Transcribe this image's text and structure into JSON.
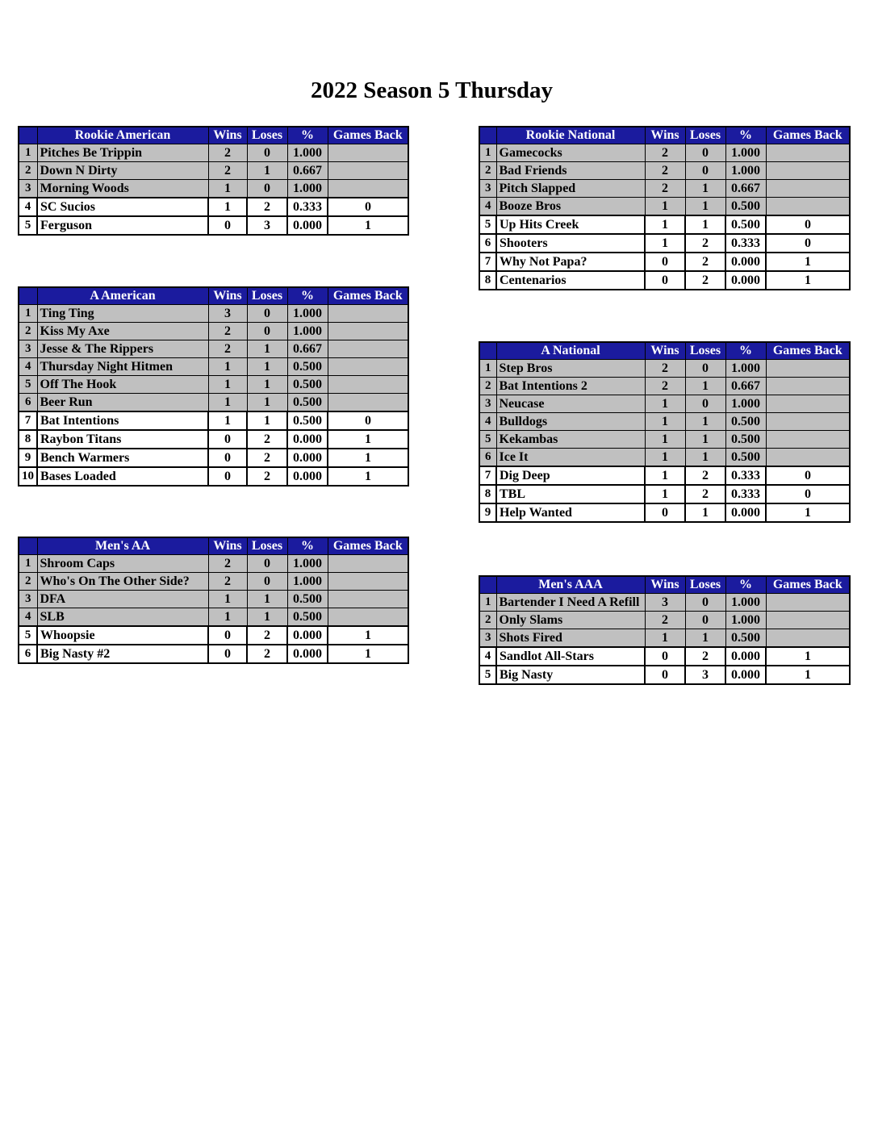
{
  "title": "2022 Season 5 Thursday",
  "column_headers": {
    "wins": "Wins",
    "loses": "Loses",
    "pct": "%",
    "games_back": "Games Back"
  },
  "colors": {
    "header_background": "#1b1b9e",
    "header_text": "#ffffff",
    "shaded_row": "#c0c0c0",
    "unshaded_row": "#ffffff",
    "border": "#000000"
  },
  "tables": [
    {
      "name": "Rookie American",
      "rows": [
        {
          "rank": "1",
          "team": "Pitches Be Trippin",
          "wins": "2",
          "loses": "0",
          "pct": "1.000",
          "games_back": "",
          "shaded": true
        },
        {
          "rank": "2",
          "team": "Down N Dirty",
          "wins": "2",
          "loses": "1",
          "pct": "0.667",
          "games_back": "",
          "shaded": true
        },
        {
          "rank": "3",
          "team": "Morning Woods",
          "wins": "1",
          "loses": "0",
          "pct": "1.000",
          "games_back": "",
          "shaded": true
        },
        {
          "rank": "4",
          "team": "SC Sucios",
          "wins": "1",
          "loses": "2",
          "pct": "0.333",
          "games_back": "0",
          "shaded": false
        },
        {
          "rank": "5",
          "team": "Ferguson",
          "wins": "0",
          "loses": "3",
          "pct": "0.000",
          "games_back": "1",
          "shaded": false
        }
      ]
    },
    {
      "name": "Rookie National",
      "rows": [
        {
          "rank": "1",
          "team": "Gamecocks",
          "wins": "2",
          "loses": "0",
          "pct": "1.000",
          "games_back": "",
          "shaded": true
        },
        {
          "rank": "2",
          "team": "Bad Friends",
          "wins": "2",
          "loses": "0",
          "pct": "1.000",
          "games_back": "",
          "shaded": true
        },
        {
          "rank": "3",
          "team": "Pitch Slapped",
          "wins": "2",
          "loses": "1",
          "pct": "0.667",
          "games_back": "",
          "shaded": true
        },
        {
          "rank": "4",
          "team": "Booze Bros",
          "wins": "1",
          "loses": "1",
          "pct": "0.500",
          "games_back": "",
          "shaded": true
        },
        {
          "rank": "5",
          "team": "Up Hits Creek",
          "wins": "1",
          "loses": "1",
          "pct": "0.500",
          "games_back": "0",
          "shaded": false
        },
        {
          "rank": "6",
          "team": "Shooters",
          "wins": "1",
          "loses": "2",
          "pct": "0.333",
          "games_back": "0",
          "shaded": false
        },
        {
          "rank": "7",
          "team": "Why Not Papa?",
          "wins": "0",
          "loses": "2",
          "pct": "0.000",
          "games_back": "1",
          "shaded": false
        },
        {
          "rank": "8",
          "team": "Centenarios",
          "wins": "0",
          "loses": "2",
          "pct": "0.000",
          "games_back": "1",
          "shaded": false
        }
      ]
    },
    {
      "name": "A American",
      "rows": [
        {
          "rank": "1",
          "team": "Ting Ting",
          "wins": "3",
          "loses": "0",
          "pct": "1.000",
          "games_back": "",
          "shaded": true
        },
        {
          "rank": "2",
          "team": "Kiss My Axe",
          "wins": "2",
          "loses": "0",
          "pct": "1.000",
          "games_back": "",
          "shaded": true
        },
        {
          "rank": "3",
          "team": "Jesse & The Rippers",
          "wins": "2",
          "loses": "1",
          "pct": "0.667",
          "games_back": "",
          "shaded": true
        },
        {
          "rank": "4",
          "team": "Thursday Night Hitmen",
          "wins": "1",
          "loses": "1",
          "pct": "0.500",
          "games_back": "",
          "shaded": true
        },
        {
          "rank": "5",
          "team": "Off The Hook",
          "wins": "1",
          "loses": "1",
          "pct": "0.500",
          "games_back": "",
          "shaded": true
        },
        {
          "rank": "6",
          "team": "Beer Run",
          "wins": "1",
          "loses": "1",
          "pct": "0.500",
          "games_back": "",
          "shaded": true
        },
        {
          "rank": "7",
          "team": "Bat Intentions",
          "wins": "1",
          "loses": "1",
          "pct": "0.500",
          "games_back": "0",
          "shaded": false
        },
        {
          "rank": "8",
          "team": "Raybon Titans",
          "wins": "0",
          "loses": "2",
          "pct": "0.000",
          "games_back": "1",
          "shaded": false
        },
        {
          "rank": "9",
          "team": "Bench Warmers",
          "wins": "0",
          "loses": "2",
          "pct": "0.000",
          "games_back": "1",
          "shaded": false
        },
        {
          "rank": "10",
          "team": "Bases Loaded",
          "wins": "0",
          "loses": "2",
          "pct": "0.000",
          "games_back": "1",
          "shaded": false
        }
      ]
    },
    {
      "name": "A National",
      "rows": [
        {
          "rank": "1",
          "team": "Step Bros",
          "wins": "2",
          "loses": "0",
          "pct": "1.000",
          "games_back": "",
          "shaded": true
        },
        {
          "rank": "2",
          "team": "Bat Intentions 2",
          "wins": "2",
          "loses": "1",
          "pct": "0.667",
          "games_back": "",
          "shaded": true
        },
        {
          "rank": "3",
          "team": "Neucase",
          "wins": "1",
          "loses": "0",
          "pct": "1.000",
          "games_back": "",
          "shaded": true
        },
        {
          "rank": "4",
          "team": "Bulldogs",
          "wins": "1",
          "loses": "1",
          "pct": "0.500",
          "games_back": "",
          "shaded": true
        },
        {
          "rank": "5",
          "team": "Kekambas",
          "wins": "1",
          "loses": "1",
          "pct": "0.500",
          "games_back": "",
          "shaded": true
        },
        {
          "rank": "6",
          "team": "Ice It",
          "wins": "1",
          "loses": "1",
          "pct": "0.500",
          "games_back": "",
          "shaded": true
        },
        {
          "rank": "7",
          "team": "Dig Deep",
          "wins": "1",
          "loses": "2",
          "pct": "0.333",
          "games_back": "0",
          "shaded": false
        },
        {
          "rank": "8",
          "team": "TBL",
          "wins": "1",
          "loses": "2",
          "pct": "0.333",
          "games_back": "0",
          "shaded": false
        },
        {
          "rank": "9",
          "team": "Help Wanted",
          "wins": "0",
          "loses": "1",
          "pct": "0.000",
          "games_back": "1",
          "shaded": false
        }
      ]
    },
    {
      "name": "Men's AA",
      "rows": [
        {
          "rank": "1",
          "team": "Shroom Caps",
          "wins": "2",
          "loses": "0",
          "pct": "1.000",
          "games_back": "",
          "shaded": true
        },
        {
          "rank": "2",
          "team": "Who's On The Other Side?",
          "wins": "2",
          "loses": "0",
          "pct": "1.000",
          "games_back": "",
          "shaded": true
        },
        {
          "rank": "3",
          "team": "DFA",
          "wins": "1",
          "loses": "1",
          "pct": "0.500",
          "games_back": "",
          "shaded": true
        },
        {
          "rank": "4",
          "team": "SLB",
          "wins": "1",
          "loses": "1",
          "pct": "0.500",
          "games_back": "",
          "shaded": true
        },
        {
          "rank": "5",
          "team": "Whoopsie",
          "wins": "0",
          "loses": "2",
          "pct": "0.000",
          "games_back": "1",
          "shaded": false
        },
        {
          "rank": "6",
          "team": "Big Nasty #2",
          "wins": "0",
          "loses": "2",
          "pct": "0.000",
          "games_back": "1",
          "shaded": false
        }
      ]
    },
    {
      "name": "Men's AAA",
      "rows": [
        {
          "rank": "1",
          "team": "Bartender I Need A Refill",
          "wins": "3",
          "loses": "0",
          "pct": "1.000",
          "games_back": "",
          "shaded": true
        },
        {
          "rank": "2",
          "team": "Only Slams",
          "wins": "2",
          "loses": "0",
          "pct": "1.000",
          "games_back": "",
          "shaded": true
        },
        {
          "rank": "3",
          "team": "Shots Fired",
          "wins": "1",
          "loses": "1",
          "pct": "0.500",
          "games_back": "",
          "shaded": true
        },
        {
          "rank": "4",
          "team": "Sandlot All-Stars",
          "wins": "0",
          "loses": "2",
          "pct": "0.000",
          "games_back": "1",
          "shaded": false
        },
        {
          "rank": "5",
          "team": "Big Nasty",
          "wins": "0",
          "loses": "3",
          "pct": "0.000",
          "games_back": "1",
          "shaded": false
        }
      ]
    }
  ]
}
